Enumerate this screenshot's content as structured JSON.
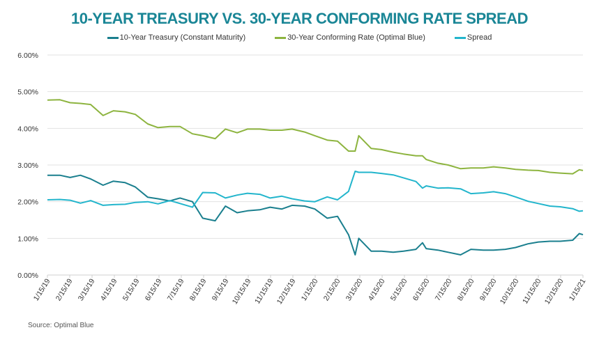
{
  "chart_data": {
    "type": "line",
    "title": "10-YEAR TREASURY VS. 30-YEAR CONFORMING RATE SPREAD",
    "source": "Source: Optimal Blue",
    "title_color": "#1a8696",
    "ylim": [
      0,
      6
    ],
    "yticks": [
      "0.00%",
      "1.00%",
      "2.00%",
      "3.00%",
      "4.00%",
      "5.00%",
      "6.00%"
    ],
    "xlim": [
      "2019-01-15",
      "2021-01-15"
    ],
    "xticks": [
      "1/15/19",
      "2/15/19",
      "3/15/19",
      "4/15/19",
      "5/15/19",
      "6/15/19",
      "7/15/19",
      "8/15/19",
      "9/15/19",
      "10/15/19",
      "11/15/19",
      "12/15/19",
      "1/15/20",
      "2/15/20",
      "3/15/20",
      "4/15/20",
      "5/15/20",
      "6/15/20",
      "7/15/20",
      "8/15/20",
      "9/15/20",
      "10/15/20",
      "11/15/20",
      "12/15/20",
      "1/15/21"
    ],
    "grid": true,
    "legend_position": "top",
    "x": [
      "2019-01-15",
      "2019-02-01",
      "2019-02-15",
      "2019-03-01",
      "2019-03-15",
      "2019-04-01",
      "2019-04-15",
      "2019-05-01",
      "2019-05-15",
      "2019-06-01",
      "2019-06-15",
      "2019-07-01",
      "2019-07-15",
      "2019-08-01",
      "2019-08-15",
      "2019-09-01",
      "2019-09-15",
      "2019-10-01",
      "2019-10-15",
      "2019-11-01",
      "2019-11-15",
      "2019-12-01",
      "2019-12-15",
      "2020-01-01",
      "2020-01-15",
      "2020-02-01",
      "2020-02-15",
      "2020-03-01",
      "2020-03-10",
      "2020-03-15",
      "2020-04-01",
      "2020-04-15",
      "2020-05-01",
      "2020-05-15",
      "2020-06-01",
      "2020-06-10",
      "2020-06-15",
      "2020-07-01",
      "2020-07-15",
      "2020-08-01",
      "2020-08-15",
      "2020-09-01",
      "2020-09-15",
      "2020-10-01",
      "2020-10-15",
      "2020-11-01",
      "2020-11-15",
      "2020-12-01",
      "2020-12-15",
      "2021-01-01",
      "2021-01-10",
      "2021-01-15"
    ],
    "series": [
      {
        "name": "10-Year Treasury (Constant Maturity)",
        "color": "#1a7f8e",
        "values": [
          2.72,
          2.72,
          2.66,
          2.72,
          2.62,
          2.45,
          2.56,
          2.52,
          2.4,
          2.12,
          2.08,
          2.02,
          2.1,
          2.0,
          1.55,
          1.48,
          1.88,
          1.7,
          1.75,
          1.78,
          1.85,
          1.8,
          1.9,
          1.88,
          1.8,
          1.55,
          1.6,
          1.1,
          0.55,
          1.0,
          0.65,
          0.65,
          0.62,
          0.65,
          0.7,
          0.88,
          0.72,
          0.68,
          0.62,
          0.55,
          0.7,
          0.68,
          0.68,
          0.7,
          0.75,
          0.85,
          0.9,
          0.92,
          0.92,
          0.95,
          1.13,
          1.1
        ]
      },
      {
        "name": "30-Year Conforming Rate (Optimal Blue)",
        "color": "#8db43f",
        "values": [
          4.77,
          4.78,
          4.7,
          4.68,
          4.65,
          4.35,
          4.48,
          4.45,
          4.38,
          4.12,
          4.02,
          4.05,
          4.05,
          3.85,
          3.8,
          3.72,
          3.98,
          3.88,
          3.98,
          3.98,
          3.95,
          3.95,
          3.98,
          3.9,
          3.8,
          3.68,
          3.65,
          3.38,
          3.38,
          3.8,
          3.45,
          3.42,
          3.35,
          3.3,
          3.25,
          3.25,
          3.15,
          3.05,
          3.0,
          2.9,
          2.92,
          2.92,
          2.95,
          2.92,
          2.88,
          2.86,
          2.85,
          2.8,
          2.78,
          2.76,
          2.87,
          2.85
        ]
      },
      {
        "name": "Spread",
        "color": "#22b5cc",
        "values": [
          2.05,
          2.06,
          2.04,
          1.96,
          2.03,
          1.9,
          1.92,
          1.93,
          1.98,
          2.0,
          1.94,
          2.03,
          1.95,
          1.85,
          2.25,
          2.24,
          2.1,
          2.18,
          2.23,
          2.2,
          2.1,
          2.15,
          2.08,
          2.02,
          2.0,
          2.13,
          2.05,
          2.28,
          2.83,
          2.8,
          2.8,
          2.77,
          2.73,
          2.65,
          2.55,
          2.37,
          2.43,
          2.37,
          2.38,
          2.35,
          2.22,
          2.24,
          2.27,
          2.22,
          2.13,
          2.01,
          1.95,
          1.88,
          1.86,
          1.81,
          1.74,
          1.75
        ]
      }
    ]
  }
}
